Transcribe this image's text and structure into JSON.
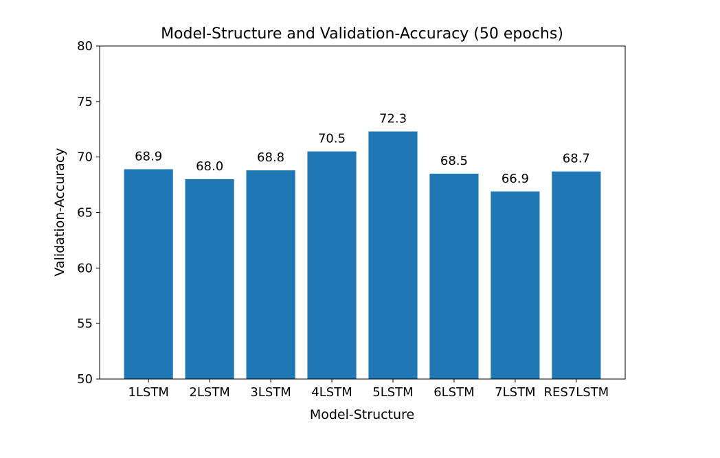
{
  "chart_data": {
    "type": "bar",
    "title": "Model-Structure and Validation-Accuracy (50 epochs)",
    "xlabel": "Model-Structure",
    "ylabel": "Validation-Accuracy",
    "categories": [
      "1LSTM",
      "2LSTM",
      "3LSTM",
      "4LSTM",
      "5LSTM",
      "6LSTM",
      "7LSTM",
      "RES7LSTM"
    ],
    "values": [
      68.9,
      68.0,
      68.8,
      70.5,
      72.3,
      68.5,
      66.9,
      68.7
    ],
    "data_labels": [
      "68.9",
      "68.0",
      "68.8",
      "70.5",
      "72.3",
      "68.5",
      "66.9",
      "68.7"
    ],
    "ylim": [
      50,
      80
    ],
    "yticks": [
      50,
      55,
      60,
      65,
      70,
      75,
      80
    ],
    "grid": false,
    "legend": "none",
    "bar_color": "#1f77b4"
  }
}
